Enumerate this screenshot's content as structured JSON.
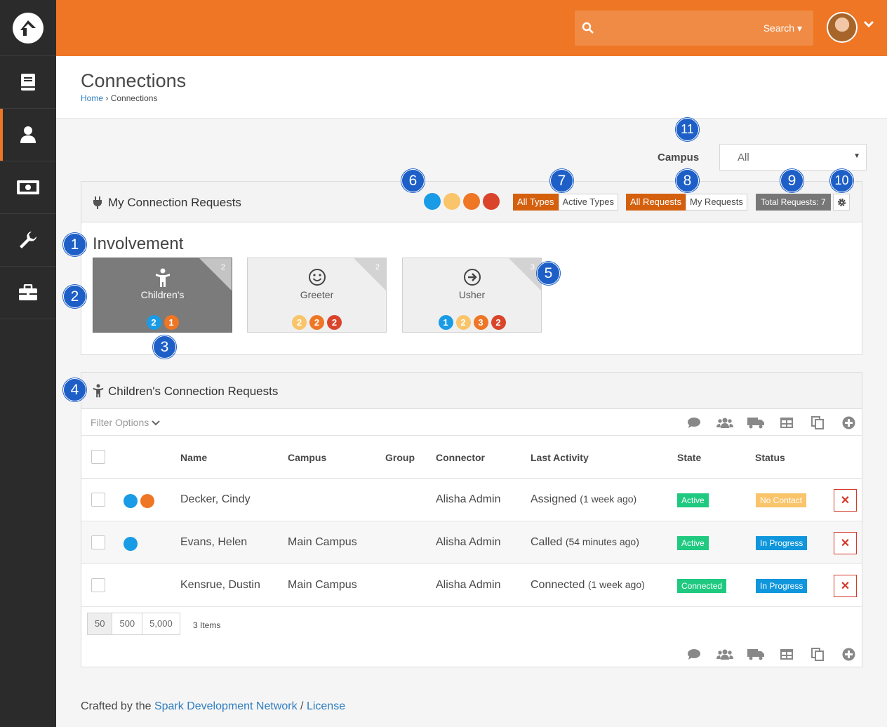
{
  "colors": {
    "blue": "#1a9be5",
    "light_orange": "#f9c46a",
    "orange": "#ee7625",
    "red": "#d9442b",
    "green": "#1fc980",
    "status_blue": "#0f96dc"
  },
  "header": {
    "search_label": "Search ▾"
  },
  "sidebar": {
    "items": [
      {
        "icon": "book-icon"
      },
      {
        "icon": "person-icon"
      },
      {
        "icon": "money-icon"
      },
      {
        "icon": "wrench-icon"
      },
      {
        "icon": "briefcase-icon"
      }
    ],
    "active": 1
  },
  "page": {
    "title": "Connections",
    "breadcrumb": {
      "home": "Home",
      "separator": "›",
      "current": "Connections"
    }
  },
  "campus_filter": {
    "label": "Campus",
    "value": "All"
  },
  "my_requests_panel": {
    "title": "My Connection Requests",
    "type_toggle": [
      "All Types",
      "Active Types"
    ],
    "request_toggle": [
      "All Requests",
      "My Requests"
    ],
    "total_label": "Total Requests: 7",
    "section_title": "Involvement",
    "tiles": [
      {
        "name": "Children's",
        "count": "2",
        "badges": [
          {
            "n": "2",
            "color": "#1a9be5"
          },
          {
            "n": "1",
            "color": "#ee7625"
          }
        ]
      },
      {
        "name": "Greeter",
        "count": "2",
        "badges": [
          {
            "n": "2",
            "color": "#f9c46a"
          },
          {
            "n": "2",
            "color": "#ee7625"
          },
          {
            "n": "2",
            "color": "#d9442b"
          }
        ]
      },
      {
        "name": "Usher",
        "count": "3",
        "badges": [
          {
            "n": "1",
            "color": "#1a9be5"
          },
          {
            "n": "2",
            "color": "#f9c46a"
          },
          {
            "n": "3",
            "color": "#ee7625"
          },
          {
            "n": "2",
            "color": "#d9442b"
          }
        ]
      }
    ]
  },
  "requests_panel": {
    "title": "Children's Connection Requests",
    "filter_label": "Filter Options",
    "columns": {
      "name": "Name",
      "campus": "Campus",
      "group": "Group",
      "connector": "Connector",
      "last_activity": "Last Activity",
      "state": "State",
      "status": "Status"
    },
    "rows": [
      {
        "name": "Decker, Cindy",
        "campus": "",
        "connector": "Alisha Admin",
        "activity": "Assigned",
        "ago": "(1 week ago)",
        "state": "Active",
        "status": "No Contact"
      },
      {
        "name": "Evans, Helen",
        "campus": "Main Campus",
        "connector": "Alisha Admin",
        "activity": "Called",
        "ago": "(54 minutes ago)",
        "state": "Active",
        "status": "In Progress"
      },
      {
        "name": "Kensrue, Dustin",
        "campus": "Main Campus",
        "connector": "Alisha Admin",
        "activity": "Connected",
        "ago": "(1 week ago)",
        "state": "Connected",
        "status": "In Progress"
      }
    ],
    "pager": [
      "50",
      "500",
      "5,000"
    ],
    "item_count": "3 Items"
  },
  "callouts": [
    "1",
    "2",
    "3",
    "4",
    "5",
    "6",
    "7",
    "8",
    "9",
    "10",
    "11"
  ],
  "footer": {
    "prefix": "Crafted by the",
    "link1": "Spark Development Network",
    "sep": "/",
    "link2": "License"
  }
}
